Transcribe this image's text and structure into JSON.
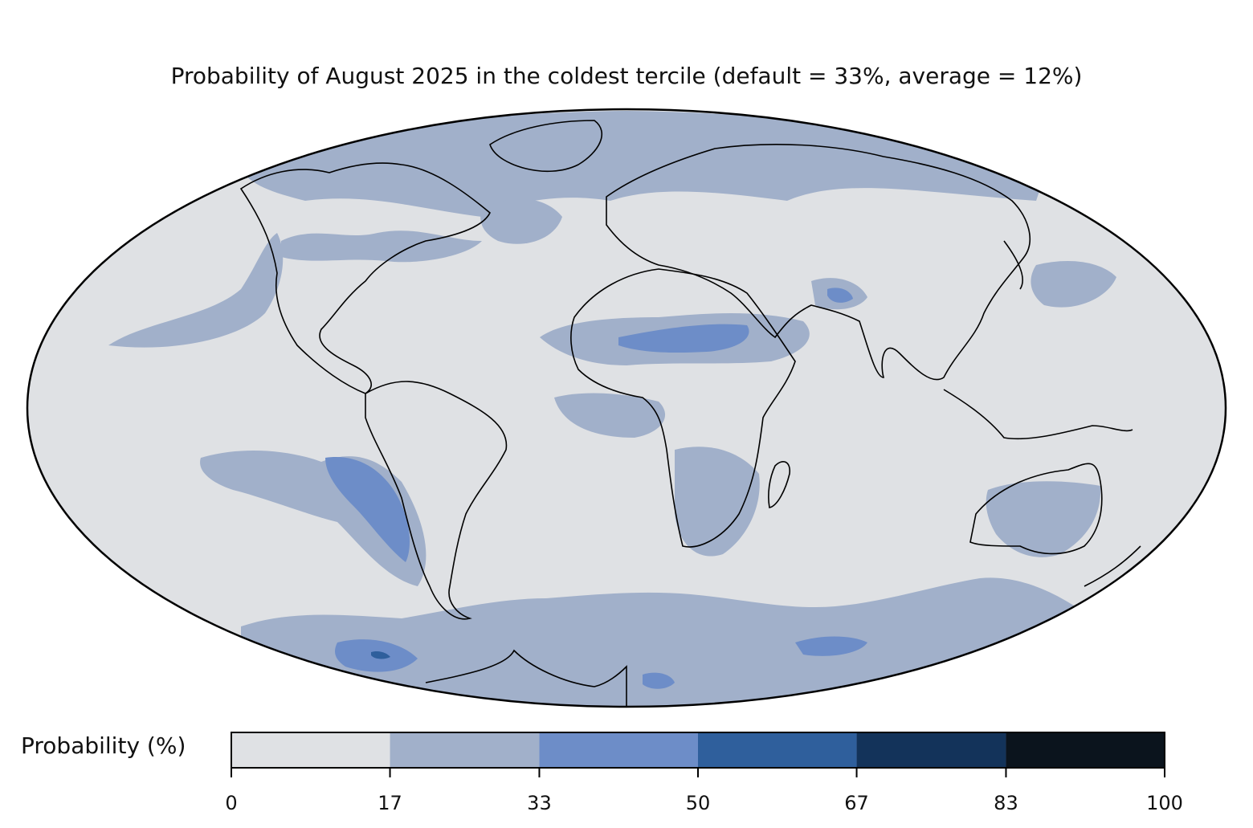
{
  "title": "Probability of August 2025 in the coldest tercile (default = 33%, average = 12%)",
  "colorbar": {
    "label": "Probability (%)",
    "ticks": [
      "0",
      "17",
      "33",
      "50",
      "67",
      "83",
      "100"
    ],
    "bins": [
      {
        "from": 0,
        "to": 17,
        "color": "#dfe1e4"
      },
      {
        "from": 17,
        "to": 33,
        "color": "#a1b0ca"
      },
      {
        "from": 33,
        "to": 50,
        "color": "#6d8dc8"
      },
      {
        "from": 50,
        "to": 67,
        "color": "#2f5f9c"
      },
      {
        "from": 67,
        "to": 83,
        "color": "#13335a"
      },
      {
        "from": 83,
        "to": 100,
        "color": "#0b141d"
      }
    ]
  },
  "map": {
    "projection": "mollweide",
    "background_color": "#dfe1e4",
    "coastline_color": "#000000",
    "border_color": "#888888"
  }
}
